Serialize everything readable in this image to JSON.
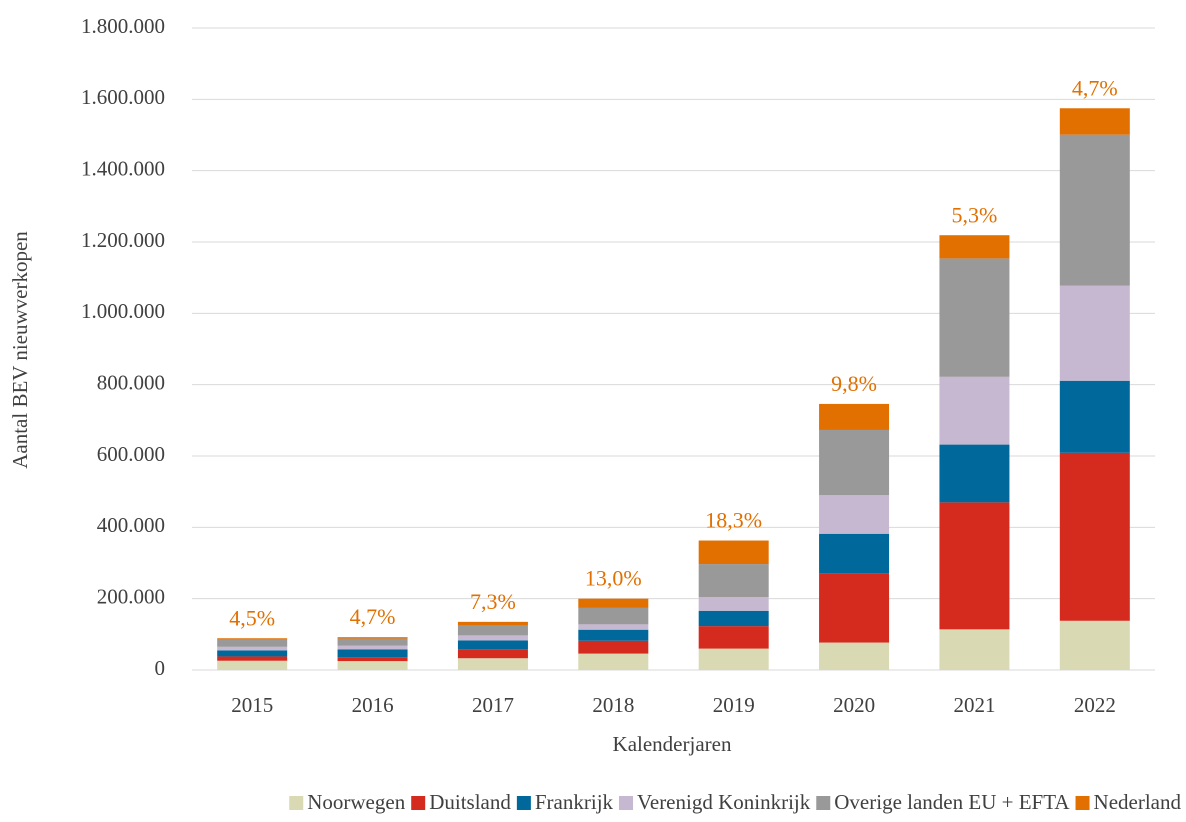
{
  "chart_data": {
    "type": "stacked-bar",
    "y_label": "Aantal BEV nieuwverkopen",
    "x_label": "Kalenderjaren",
    "categories": [
      "2015",
      "2016",
      "2017",
      "2018",
      "2019",
      "2020",
      "2021",
      "2022"
    ],
    "series": [
      {
        "name": "Noorwegen",
        "color": "#d9d9b3",
        "values": [
          26000,
          25000,
          33000,
          46000,
          60000,
          77000,
          114000,
          138000
        ]
      },
      {
        "name": "Duitsland",
        "color": "#d52b1e",
        "values": [
          12000,
          11000,
          25000,
          36000,
          63000,
          194000,
          356000,
          471000
        ]
      },
      {
        "name": "Frankrijk",
        "color": "#01689b",
        "values": [
          17000,
          22000,
          25000,
          31000,
          43000,
          111000,
          162000,
          202000
        ]
      },
      {
        "name": "Verenigd Koninkrijk",
        "color": "#c5b8d0",
        "values": [
          10000,
          10000,
          14000,
          15000,
          38000,
          108000,
          190000,
          267000
        ]
      },
      {
        "name": "Overige landen EU + EFTA",
        "color": "#999999",
        "values": [
          20000,
          20000,
          28000,
          46000,
          93000,
          183000,
          332000,
          423000
        ]
      },
      {
        "name": "Nederland",
        "color": "#e17000",
        "values": [
          4000,
          4000,
          10000,
          26000,
          66000,
          73000,
          65000,
          74000
        ]
      }
    ],
    "annotations": [
      "4,5%",
      "4,7%",
      "7,3%",
      "13,0%",
      "18,3%",
      "9,8%",
      "5,3%",
      "4,7%"
    ],
    "annotation_color": "#e17000",
    "ylim": [
      0,
      1800000
    ],
    "yticks": [
      0,
      {
        "value": 200000,
        "label": "200.000"
      },
      {
        "value": 400000,
        "label": "400.000"
      },
      {
        "value": 600000,
        "label": "600.000"
      },
      {
        "value": 800000,
        "label": "800.000"
      },
      {
        "value": 1000000,
        "label": "1.000.000"
      },
      {
        "value": 1200000,
        "label": "1.200.000"
      },
      {
        "value": 1400000,
        "label": "1.400.000"
      },
      {
        "value": 1600000,
        "label": "1.600.000"
      },
      {
        "value": 1800000,
        "label": "1.800.000"
      }
    ],
    "grid": true,
    "legend": "bottom"
  }
}
